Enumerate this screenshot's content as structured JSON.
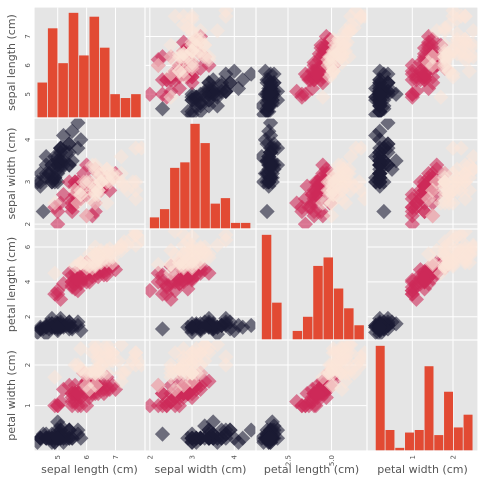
{
  "chart_data": {
    "type": "scatter",
    "variables": [
      "sepal length (cm)",
      "sepal width (cm)",
      "petal length (cm)",
      "petal width (cm)"
    ],
    "ranges": [
      [
        4.2,
        8.0
      ],
      [
        1.9,
        4.5
      ],
      [
        0.7,
        7.0
      ],
      [
        -0.1,
        2.6
      ]
    ],
    "ticks": {
      "row": [
        [
          5,
          6,
          7
        ],
        [
          2,
          3,
          4
        ],
        [
          2,
          4,
          6
        ],
        [
          1,
          2
        ]
      ],
      "col": [
        [
          5,
          6,
          7
        ],
        [
          2,
          3,
          4
        ],
        [
          2.5,
          5.0
        ],
        [
          1,
          2
        ]
      ]
    },
    "tick_labels": {
      "row": [
        [
          "5",
          "6",
          "7"
        ],
        [
          "2",
          "3",
          "4"
        ],
        [
          "2",
          "4",
          "6"
        ],
        [
          "1",
          "2"
        ]
      ],
      "col": [
        [
          "5",
          "6",
          "7"
        ],
        [
          "2",
          "3",
          "4"
        ],
        [
          "2.5",
          "5.0"
        ],
        [
          "1",
          "2"
        ]
      ]
    },
    "class_colors": [
      "#1b1b33",
      "#cd2a59",
      "#fbe6d8"
    ],
    "histogram_color": "#e24a33",
    "panel_background": "#e5e5e5",
    "histograms": [
      {
        "variable": "sepal length (cm)",
        "edges": [
          4.3,
          4.66,
          5.02,
          5.38,
          5.74,
          6.1,
          6.46,
          6.82,
          7.18,
          7.54,
          7.9
        ],
        "counts": [
          9,
          23,
          14,
          27,
          16,
          26,
          18,
          6,
          5,
          6
        ]
      },
      {
        "variable": "sepal width (cm)",
        "edges": [
          2.0,
          2.24,
          2.48,
          2.72,
          2.96,
          3.2,
          3.44,
          3.68,
          3.92,
          4.16,
          4.4
        ],
        "counts": [
          4,
          7,
          22,
          24,
          38,
          31,
          9,
          11,
          2,
          2
        ]
      },
      {
        "variable": "petal length (cm)",
        "edges": [
          1.0,
          1.59,
          2.18,
          2.77,
          3.36,
          3.95,
          4.54,
          5.13,
          5.72,
          6.31,
          6.9
        ],
        "counts": [
          37,
          13,
          0,
          3,
          8,
          26,
          29,
          18,
          11,
          5
        ]
      },
      {
        "variable": "petal width (cm)",
        "edges": [
          0.1,
          0.34,
          0.58,
          0.82,
          1.06,
          1.3,
          1.54,
          1.78,
          2.02,
          2.26,
          2.5
        ],
        "counts": [
          41,
          8,
          1,
          7,
          8,
          33,
          6,
          23,
          9,
          14
        ]
      }
    ],
    "points": [
      [
        5.1,
        3.5,
        1.4,
        0.2,
        0
      ],
      [
        4.9,
        3.0,
        1.4,
        0.2,
        0
      ],
      [
        4.7,
        3.2,
        1.3,
        0.2,
        0
      ],
      [
        4.6,
        3.1,
        1.5,
        0.2,
        0
      ],
      [
        5.0,
        3.6,
        1.4,
        0.2,
        0
      ],
      [
        5.4,
        3.9,
        1.7,
        0.4,
        0
      ],
      [
        4.6,
        3.4,
        1.4,
        0.3,
        0
      ],
      [
        5.0,
        3.4,
        1.5,
        0.2,
        0
      ],
      [
        4.4,
        2.9,
        1.4,
        0.2,
        0
      ],
      [
        4.9,
        3.1,
        1.5,
        0.1,
        0
      ],
      [
        5.4,
        3.7,
        1.5,
        0.2,
        0
      ],
      [
        4.8,
        3.4,
        1.6,
        0.2,
        0
      ],
      [
        4.8,
        3.0,
        1.4,
        0.1,
        0
      ],
      [
        4.3,
        3.0,
        1.1,
        0.1,
        0
      ],
      [
        5.8,
        4.0,
        1.2,
        0.2,
        0
      ],
      [
        5.7,
        4.4,
        1.5,
        0.4,
        0
      ],
      [
        5.4,
        3.9,
        1.3,
        0.4,
        0
      ],
      [
        5.1,
        3.5,
        1.4,
        0.3,
        0
      ],
      [
        5.7,
        3.8,
        1.7,
        0.3,
        0
      ],
      [
        5.1,
        3.8,
        1.5,
        0.3,
        0
      ],
      [
        5.4,
        3.4,
        1.7,
        0.2,
        0
      ],
      [
        5.1,
        3.7,
        1.5,
        0.4,
        0
      ],
      [
        4.6,
        3.6,
        1.0,
        0.2,
        0
      ],
      [
        5.1,
        3.3,
        1.7,
        0.5,
        0
      ],
      [
        4.8,
        3.4,
        1.9,
        0.2,
        0
      ],
      [
        5.0,
        3.0,
        1.6,
        0.2,
        0
      ],
      [
        5.0,
        3.4,
        1.6,
        0.4,
        0
      ],
      [
        5.2,
        3.5,
        1.5,
        0.2,
        0
      ],
      [
        5.2,
        3.4,
        1.4,
        0.2,
        0
      ],
      [
        4.7,
        3.2,
        1.6,
        0.2,
        0
      ],
      [
        4.8,
        3.1,
        1.6,
        0.2,
        0
      ],
      [
        5.4,
        3.4,
        1.5,
        0.4,
        0
      ],
      [
        5.2,
        4.1,
        1.5,
        0.1,
        0
      ],
      [
        5.5,
        4.2,
        1.4,
        0.2,
        0
      ],
      [
        4.9,
        3.1,
        1.5,
        0.2,
        0
      ],
      [
        5.0,
        3.2,
        1.2,
        0.2,
        0
      ],
      [
        5.5,
        3.5,
        1.3,
        0.2,
        0
      ],
      [
        4.9,
        3.6,
        1.4,
        0.1,
        0
      ],
      [
        4.4,
        3.0,
        1.3,
        0.2,
        0
      ],
      [
        5.1,
        3.4,
        1.5,
        0.2,
        0
      ],
      [
        5.0,
        3.5,
        1.3,
        0.3,
        0
      ],
      [
        4.5,
        2.3,
        1.3,
        0.3,
        0
      ],
      [
        4.4,
        3.2,
        1.3,
        0.2,
        0
      ],
      [
        5.0,
        3.5,
        1.6,
        0.6,
        0
      ],
      [
        5.1,
        3.8,
        1.9,
        0.4,
        0
      ],
      [
        4.8,
        3.0,
        1.4,
        0.3,
        0
      ],
      [
        5.1,
        3.8,
        1.6,
        0.2,
        0
      ],
      [
        4.6,
        3.2,
        1.4,
        0.2,
        0
      ],
      [
        5.3,
        3.7,
        1.5,
        0.2,
        0
      ],
      [
        5.0,
        3.3,
        1.4,
        0.2,
        0
      ],
      [
        7.0,
        3.2,
        4.7,
        1.4,
        1
      ],
      [
        6.4,
        3.2,
        4.5,
        1.5,
        1
      ],
      [
        6.9,
        3.1,
        4.9,
        1.5,
        1
      ],
      [
        5.5,
        2.3,
        4.0,
        1.3,
        1
      ],
      [
        6.5,
        2.8,
        4.6,
        1.5,
        1
      ],
      [
        5.7,
        2.8,
        4.5,
        1.3,
        1
      ],
      [
        6.3,
        3.3,
        4.7,
        1.6,
        1
      ],
      [
        4.9,
        2.4,
        3.3,
        1.0,
        1
      ],
      [
        6.6,
        2.9,
        4.6,
        1.3,
        1
      ],
      [
        5.2,
        2.7,
        3.9,
        1.4,
        1
      ],
      [
        5.0,
        2.0,
        3.5,
        1.0,
        1
      ],
      [
        5.9,
        3.0,
        4.2,
        1.5,
        1
      ],
      [
        6.0,
        2.2,
        4.0,
        1.0,
        1
      ],
      [
        6.1,
        2.9,
        4.7,
        1.4,
        1
      ],
      [
        5.6,
        2.9,
        3.6,
        1.3,
        1
      ],
      [
        6.7,
        3.1,
        4.4,
        1.4,
        1
      ],
      [
        5.6,
        3.0,
        4.5,
        1.5,
        1
      ],
      [
        5.8,
        2.7,
        4.1,
        1.0,
        1
      ],
      [
        6.2,
        2.2,
        4.5,
        1.5,
        1
      ],
      [
        5.6,
        2.5,
        3.9,
        1.1,
        1
      ],
      [
        5.9,
        3.2,
        4.8,
        1.8,
        1
      ],
      [
        6.1,
        2.8,
        4.0,
        1.3,
        1
      ],
      [
        6.3,
        2.5,
        4.9,
        1.5,
        1
      ],
      [
        6.1,
        2.8,
        4.7,
        1.2,
        1
      ],
      [
        6.4,
        2.9,
        4.3,
        1.3,
        1
      ],
      [
        6.6,
        3.0,
        4.4,
        1.4,
        1
      ],
      [
        6.8,
        2.8,
        4.8,
        1.4,
        1
      ],
      [
        6.7,
        3.0,
        5.0,
        1.7,
        1
      ],
      [
        6.0,
        2.9,
        4.5,
        1.5,
        1
      ],
      [
        5.7,
        2.6,
        3.5,
        1.0,
        1
      ],
      [
        5.5,
        2.4,
        3.8,
        1.1,
        1
      ],
      [
        5.5,
        2.4,
        3.7,
        1.0,
        1
      ],
      [
        5.8,
        2.7,
        3.9,
        1.2,
        1
      ],
      [
        6.0,
        2.7,
        5.1,
        1.6,
        1
      ],
      [
        5.4,
        3.0,
        4.5,
        1.5,
        1
      ],
      [
        6.0,
        3.4,
        4.5,
        1.6,
        1
      ],
      [
        6.7,
        3.1,
        4.7,
        1.5,
        1
      ],
      [
        6.3,
        2.3,
        4.4,
        1.3,
        1
      ],
      [
        5.6,
        3.0,
        4.1,
        1.3,
        1
      ],
      [
        5.5,
        2.5,
        4.0,
        1.3,
        1
      ],
      [
        5.5,
        2.6,
        4.4,
        1.2,
        1
      ],
      [
        6.1,
        3.0,
        4.6,
        1.4,
        1
      ],
      [
        5.8,
        2.6,
        4.0,
        1.2,
        1
      ],
      [
        5.0,
        2.3,
        3.3,
        1.0,
        1
      ],
      [
        5.6,
        2.7,
        4.2,
        1.3,
        1
      ],
      [
        5.7,
        3.0,
        4.2,
        1.2,
        1
      ],
      [
        5.7,
        2.9,
        4.2,
        1.3,
        1
      ],
      [
        6.2,
        2.9,
        4.3,
        1.3,
        1
      ],
      [
        5.1,
        2.5,
        3.0,
        1.1,
        1
      ],
      [
        5.7,
        2.8,
        4.1,
        1.3,
        1
      ],
      [
        6.3,
        3.3,
        6.0,
        2.5,
        2
      ],
      [
        5.8,
        2.7,
        5.1,
        1.9,
        2
      ],
      [
        7.1,
        3.0,
        5.9,
        2.1,
        2
      ],
      [
        6.3,
        2.9,
        5.6,
        1.8,
        2
      ],
      [
        6.5,
        3.0,
        5.8,
        2.2,
        2
      ],
      [
        7.6,
        3.0,
        6.6,
        2.1,
        2
      ],
      [
        4.9,
        2.5,
        4.5,
        1.7,
        2
      ],
      [
        7.3,
        2.9,
        6.3,
        1.8,
        2
      ],
      [
        6.7,
        2.5,
        5.8,
        1.8,
        2
      ],
      [
        7.2,
        3.6,
        6.1,
        2.5,
        2
      ],
      [
        6.5,
        3.2,
        5.1,
        2.0,
        2
      ],
      [
        6.4,
        2.7,
        5.3,
        1.9,
        2
      ],
      [
        6.8,
        3.0,
        5.5,
        2.1,
        2
      ],
      [
        5.7,
        2.5,
        5.0,
        2.0,
        2
      ],
      [
        5.8,
        2.8,
        5.1,
        2.4,
        2
      ],
      [
        6.4,
        3.2,
        5.3,
        2.3,
        2
      ],
      [
        6.5,
        3.0,
        5.5,
        1.8,
        2
      ],
      [
        7.7,
        3.8,
        6.7,
        2.2,
        2
      ],
      [
        7.7,
        2.6,
        6.9,
        2.3,
        2
      ],
      [
        6.0,
        2.2,
        5.0,
        1.5,
        2
      ],
      [
        6.9,
        3.2,
        5.7,
        2.3,
        2
      ],
      [
        5.6,
        2.8,
        4.9,
        2.0,
        2
      ],
      [
        7.7,
        2.8,
        6.7,
        2.0,
        2
      ],
      [
        6.3,
        2.7,
        4.9,
        1.8,
        2
      ],
      [
        6.7,
        3.3,
        5.7,
        2.1,
        2
      ],
      [
        7.2,
        3.2,
        6.0,
        1.8,
        2
      ],
      [
        6.2,
        2.8,
        4.8,
        1.8,
        2
      ],
      [
        6.1,
        3.0,
        4.9,
        1.8,
        2
      ],
      [
        6.4,
        2.8,
        5.6,
        2.1,
        2
      ],
      [
        7.2,
        3.0,
        5.8,
        1.6,
        2
      ],
      [
        7.4,
        2.8,
        6.1,
        1.9,
        2
      ],
      [
        7.9,
        3.8,
        6.4,
        2.0,
        2
      ],
      [
        6.4,
        2.8,
        5.6,
        2.2,
        2
      ],
      [
        6.3,
        2.8,
        5.1,
        1.5,
        2
      ],
      [
        6.1,
        2.6,
        5.6,
        1.4,
        2
      ],
      [
        7.7,
        3.0,
        6.1,
        2.3,
        2
      ],
      [
        6.3,
        3.4,
        5.6,
        2.4,
        2
      ],
      [
        6.4,
        3.1,
        5.5,
        1.8,
        2
      ],
      [
        6.0,
        3.0,
        4.8,
        1.8,
        2
      ],
      [
        6.9,
        3.1,
        5.4,
        2.1,
        2
      ],
      [
        6.7,
        3.1,
        5.6,
        2.4,
        2
      ],
      [
        6.9,
        3.1,
        5.1,
        2.3,
        2
      ],
      [
        5.8,
        2.7,
        5.1,
        1.9,
        2
      ],
      [
        6.8,
        3.2,
        5.9,
        2.3,
        2
      ],
      [
        6.7,
        3.3,
        5.7,
        2.5,
        2
      ],
      [
        6.7,
        3.0,
        5.2,
        2.3,
        2
      ],
      [
        6.3,
        2.5,
        5.0,
        1.9,
        2
      ],
      [
        6.5,
        3.0,
        5.2,
        2.0,
        2
      ],
      [
        6.2,
        3.4,
        5.4,
        2.3,
        2
      ],
      [
        5.9,
        3.0,
        5.1,
        1.8,
        2
      ]
    ]
  }
}
